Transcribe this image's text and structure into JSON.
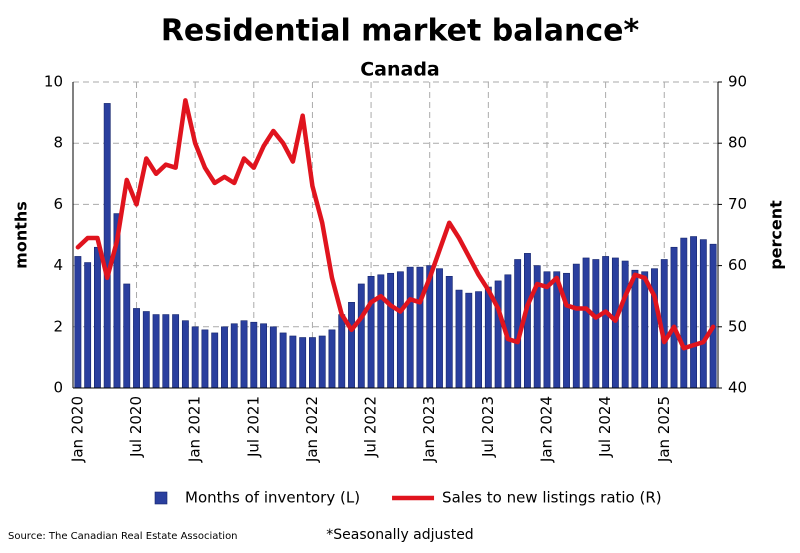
{
  "chart_data": {
    "type": "bar_line",
    "title": "Residential market balance*",
    "subtitle": "Canada",
    "ylabel": "months",
    "y2label": "percent",
    "source": "Source: The Canadian Real Estate Association",
    "footnote": "*Seasonally adjusted",
    "categories": [
      "Jan 2020",
      null,
      null,
      null,
      null,
      null,
      "Jul 2020",
      null,
      null,
      null,
      null,
      null,
      "Jan 2021",
      null,
      null,
      null,
      null,
      null,
      "Jul 2021",
      null,
      null,
      null,
      null,
      null,
      "Jan 2022",
      null,
      null,
      null,
      null,
      null,
      "Jul 2022",
      null,
      null,
      null,
      null,
      null,
      "Jan 2023",
      null,
      null,
      null,
      null,
      null,
      "Jul 2023",
      null,
      null,
      null,
      null,
      null,
      "Jan 2024",
      null,
      null,
      null,
      null,
      null,
      "Jul 2024",
      null,
      null,
      null,
      null,
      null,
      "Jan 2025",
      null,
      null,
      null,
      null,
      null
    ],
    "series": [
      {
        "name": "Months of inventory (L)",
        "color": "#2a3f9e",
        "axis": "y",
        "values": [
          4.3,
          4.1,
          4.6,
          9.3,
          5.7,
          3.4,
          2.6,
          2.5,
          2.4,
          2.4,
          2.4,
          2.2,
          2.0,
          1.9,
          1.8,
          2.0,
          2.1,
          2.2,
          2.15,
          2.1,
          2.0,
          1.8,
          1.7,
          1.65,
          1.65,
          1.7,
          1.9,
          2.4,
          2.8,
          3.4,
          3.65,
          3.7,
          3.75,
          3.8,
          3.95,
          3.95,
          4.0,
          3.9,
          3.65,
          3.2,
          3.1,
          3.15,
          3.3,
          3.5,
          3.7,
          4.2,
          4.4,
          4.0,
          3.8,
          3.8,
          3.75,
          4.05,
          4.25,
          4.2,
          4.3,
          4.25,
          4.15,
          3.85,
          3.8,
          3.9,
          4.2,
          4.6,
          4.9,
          4.95,
          4.85,
          4.7
        ]
      },
      {
        "name": "Sales to new listings ratio (R)",
        "color": "#e0141e",
        "axis": "y2",
        "values": [
          63,
          64.5,
          64.5,
          58,
          64,
          74,
          70,
          77.5,
          75,
          76.5,
          76,
          87,
          80,
          76,
          73.5,
          74.5,
          73.5,
          77.5,
          76,
          79.5,
          82,
          80,
          77,
          84.5,
          73,
          67,
          58,
          52,
          49.5,
          51.5,
          54,
          55,
          53.5,
          52.5,
          54.5,
          54,
          58,
          62.5,
          67,
          64.5,
          61.5,
          58.5,
          56,
          53,
          48,
          47.5,
          53.5,
          57,
          56.5,
          58,
          53.5,
          53,
          53,
          51.5,
          52.5,
          51,
          55,
          58.5,
          58,
          55,
          47.5,
          50,
          46.5,
          47,
          47.5,
          50
        ]
      }
    ],
    "ylim": [
      0,
      10
    ],
    "yticks": [
      0,
      2,
      4,
      6,
      8,
      10
    ],
    "y2lim": [
      40,
      90
    ],
    "y2ticks": [
      40,
      50,
      60,
      70,
      80,
      90
    ],
    "grid": true
  }
}
